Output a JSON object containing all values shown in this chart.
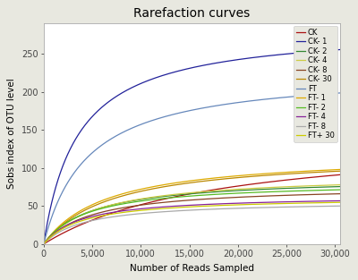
{
  "title": "Rarefaction curves",
  "xlabel": "Number of Reads Sampled",
  "ylabel": "Sobs index of OTU level",
  "xlim": [
    0,
    30500
  ],
  "ylim": [
    0,
    290
  ],
  "x_ticks": [
    0,
    5000,
    10000,
    15000,
    20000,
    25000,
    30000
  ],
  "x_tick_labels": [
    "0",
    "5,000",
    "10,000",
    "15,000",
    "20,000",
    "25,000",
    "30,000"
  ],
  "y_ticks": [
    0,
    50,
    100,
    150,
    200,
    250
  ],
  "curves": [
    {
      "label": "CK",
      "color": "#aa1111",
      "asymptote": 145,
      "half_sat": 18000
    },
    {
      "label": "CK- 1",
      "color": "#22229a",
      "asymptote": 285,
      "half_sat": 3500
    },
    {
      "label": "CK- 2",
      "color": "#338833",
      "asymptote": 88,
      "half_sat": 5000
    },
    {
      "label": "CK- 4",
      "color": "#cccc44",
      "asymptote": 92,
      "half_sat": 5500
    },
    {
      "label": "CK- 8",
      "color": "#884422",
      "asymptote": 77,
      "half_sat": 5000
    },
    {
      "label": "CK- 30",
      "color": "#bb8800",
      "asymptote": 118,
      "half_sat": 7000
    },
    {
      "label": "FT",
      "color": "#6688bb",
      "asymptote": 228,
      "half_sat": 4500
    },
    {
      "label": "FT- 1",
      "color": "#ddaa00",
      "asymptote": 119,
      "half_sat": 6500
    },
    {
      "label": "FT- 2",
      "color": "#55bb22",
      "asymptote": 82,
      "half_sat": 4500
    },
    {
      "label": "FT- 4",
      "color": "#882299",
      "asymptote": 64,
      "half_sat": 3800
    },
    {
      "label": "FT- 8",
      "color": "#aaaaaa",
      "asymptote": 57,
      "half_sat": 4200
    },
    {
      "label": "FT+ 30",
      "color": "#cccc00",
      "asymptote": 62,
      "half_sat": 4000
    }
  ],
  "fig_bg": "#e8e8e0",
  "plot_bg": "#ffffff",
  "title_fontsize": 10,
  "label_fontsize": 7.5,
  "tick_fontsize": 7,
  "legend_fontsize": 6
}
